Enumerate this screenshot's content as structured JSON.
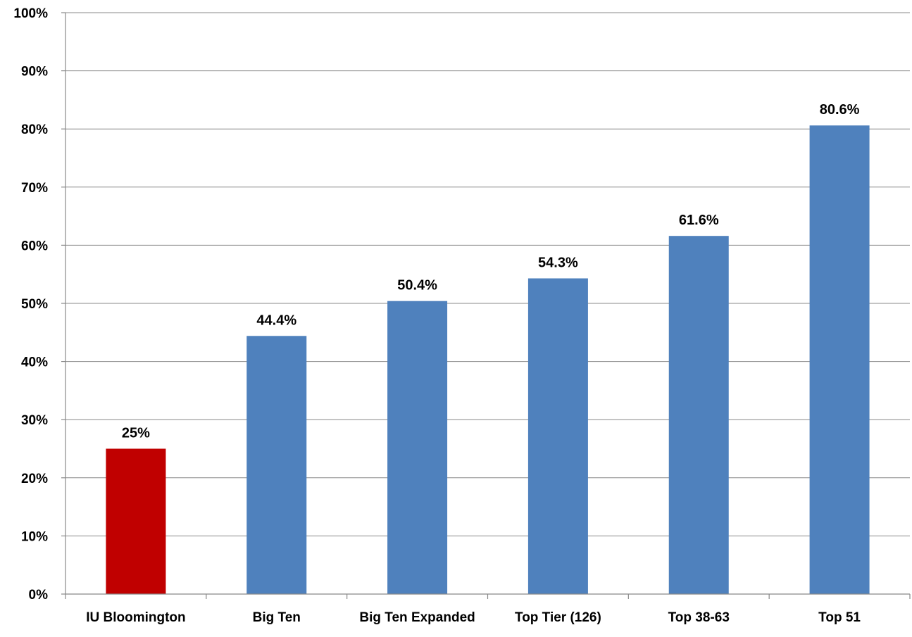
{
  "chart_data": {
    "type": "bar",
    "title": "",
    "xlabel": "",
    "ylabel": "",
    "categories": [
      "IU Bloomington",
      "Big Ten",
      "Big Ten Expanded",
      "Top Tier (126)",
      "Top 38-63",
      "Top 51"
    ],
    "values": [
      25,
      44.4,
      50.4,
      54.3,
      61.6,
      80.6
    ],
    "data_labels": [
      "25%",
      "44.4%",
      "50.4%",
      "54.3%",
      "61.6%",
      "80.6%"
    ],
    "bar_colors": [
      "#C00000",
      "#4F81BD",
      "#4F81BD",
      "#4F81BD",
      "#4F81BD",
      "#4F81BD"
    ],
    "ylim": [
      0,
      100
    ],
    "yticks": [
      0,
      10,
      20,
      30,
      40,
      50,
      60,
      70,
      80,
      90,
      100
    ],
    "ytick_labels": [
      "0%",
      "10%",
      "20%",
      "30%",
      "40%",
      "50%",
      "60%",
      "70%",
      "80%",
      "90%",
      "100%"
    ],
    "grid": true,
    "legend": "none"
  }
}
